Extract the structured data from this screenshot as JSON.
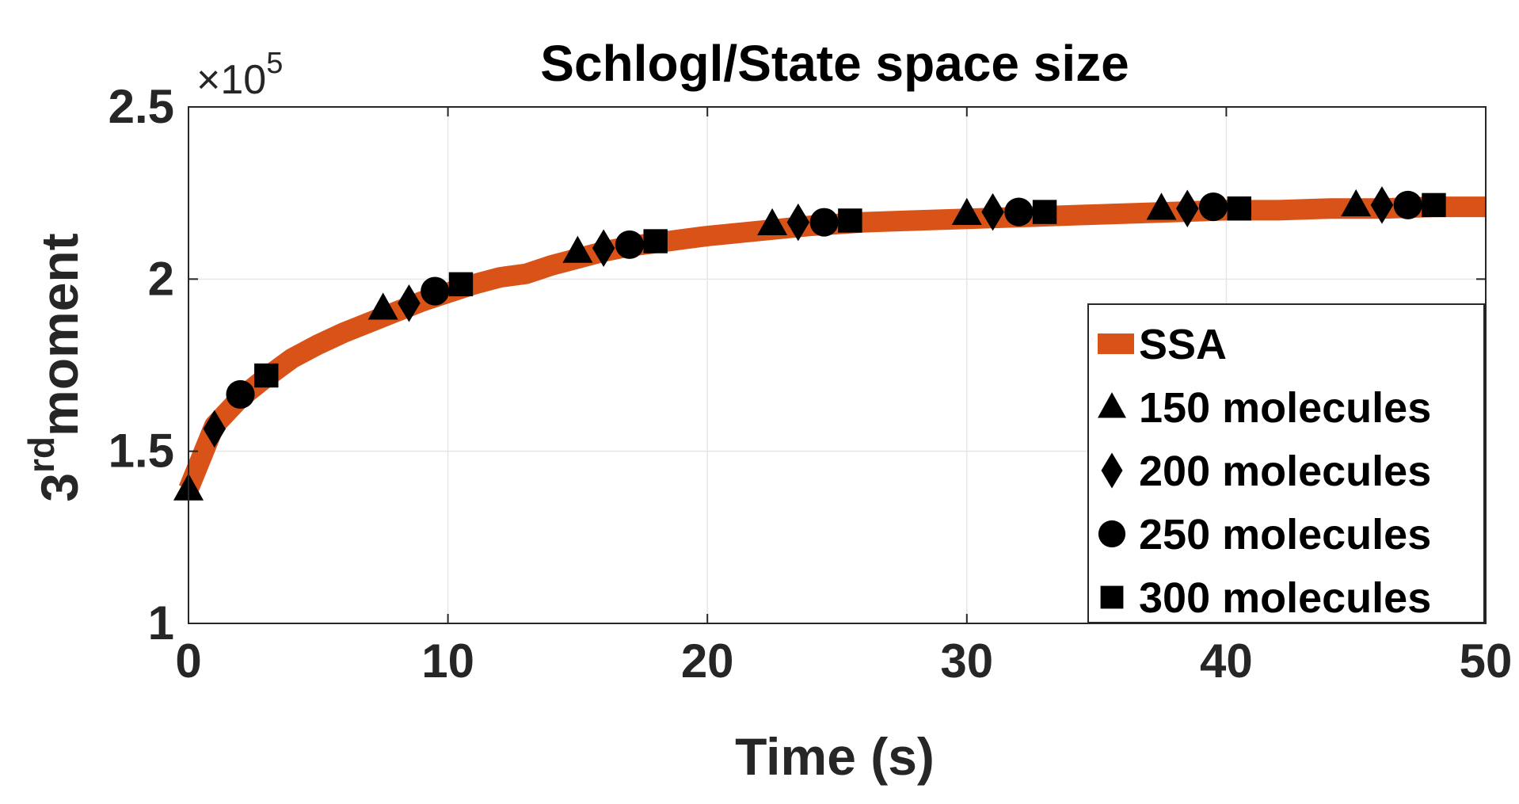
{
  "chart_data": {
    "type": "line",
    "title": "Schlogl/State space size",
    "xlabel": "Time (s)",
    "ylabel": "moment",
    "ylabel_prefix": "3",
    "ylabel_superscript": "rd",
    "y_multiplier_text": "×10",
    "y_multiplier_exponent": "5",
    "xlim": [
      0,
      50
    ],
    "ylim": [
      1,
      2.5
    ],
    "x_ticks": [
      0,
      10,
      20,
      30,
      40,
      50
    ],
    "x_tick_labels": [
      "0",
      "10",
      "20",
      "30",
      "40",
      "50"
    ],
    "y_ticks": [
      1,
      1.5,
      2,
      2.5
    ],
    "y_tick_labels": [
      "1",
      "1.5",
      "2",
      "2.5"
    ],
    "grid": true,
    "legend_position": "bottom-right",
    "series": [
      {
        "name": "SSA",
        "style": "line",
        "color": "#D95319",
        "x": [
          0,
          1,
          2,
          3,
          4,
          5,
          6,
          7,
          8,
          9,
          10,
          11,
          12,
          13,
          14,
          15,
          16,
          17,
          18,
          19,
          20,
          22,
          24,
          26,
          28,
          30,
          32,
          34,
          36,
          38,
          40,
          42,
          44,
          46,
          48,
          50
        ],
        "y": [
          1.39,
          1.575,
          1.655,
          1.715,
          1.77,
          1.81,
          1.845,
          1.875,
          1.905,
          1.935,
          1.96,
          1.985,
          2.005,
          2.015,
          2.04,
          2.06,
          2.08,
          2.095,
          2.105,
          2.115,
          2.125,
          2.14,
          2.155,
          2.165,
          2.17,
          2.175,
          2.18,
          2.185,
          2.19,
          2.195,
          2.2,
          2.2,
          2.205,
          2.205,
          2.21,
          2.21
        ]
      },
      {
        "name": "150 molecules",
        "style": "markers",
        "marker": "triangle",
        "color": "#000000",
        "x": [
          0,
          7.5,
          15,
          22.5,
          30,
          37.5,
          45
        ],
        "y": [
          1.39,
          1.915,
          2.08,
          2.16,
          2.19,
          2.205,
          2.215
        ]
      },
      {
        "name": "200 molecules",
        "style": "markers",
        "marker": "diamond",
        "color": "#000000",
        "x": [
          1,
          8.5,
          16,
          23.5,
          31,
          38.5,
          46
        ],
        "y": [
          1.565,
          1.93,
          2.09,
          2.165,
          2.195,
          2.205,
          2.215
        ]
      },
      {
        "name": "250 molecules",
        "style": "markers",
        "marker": "circle",
        "color": "#000000",
        "x": [
          2,
          9.5,
          17,
          24.5,
          32,
          39.5,
          47
        ],
        "y": [
          1.665,
          1.965,
          2.1,
          2.165,
          2.195,
          2.21,
          2.215
        ]
      },
      {
        "name": "300 molecules",
        "style": "markers",
        "marker": "square",
        "color": "#000000",
        "x": [
          3,
          10.5,
          18,
          25.5,
          33,
          40.5,
          48
        ],
        "y": [
          1.72,
          1.985,
          2.11,
          2.17,
          2.195,
          2.205,
          2.215
        ]
      }
    ]
  }
}
